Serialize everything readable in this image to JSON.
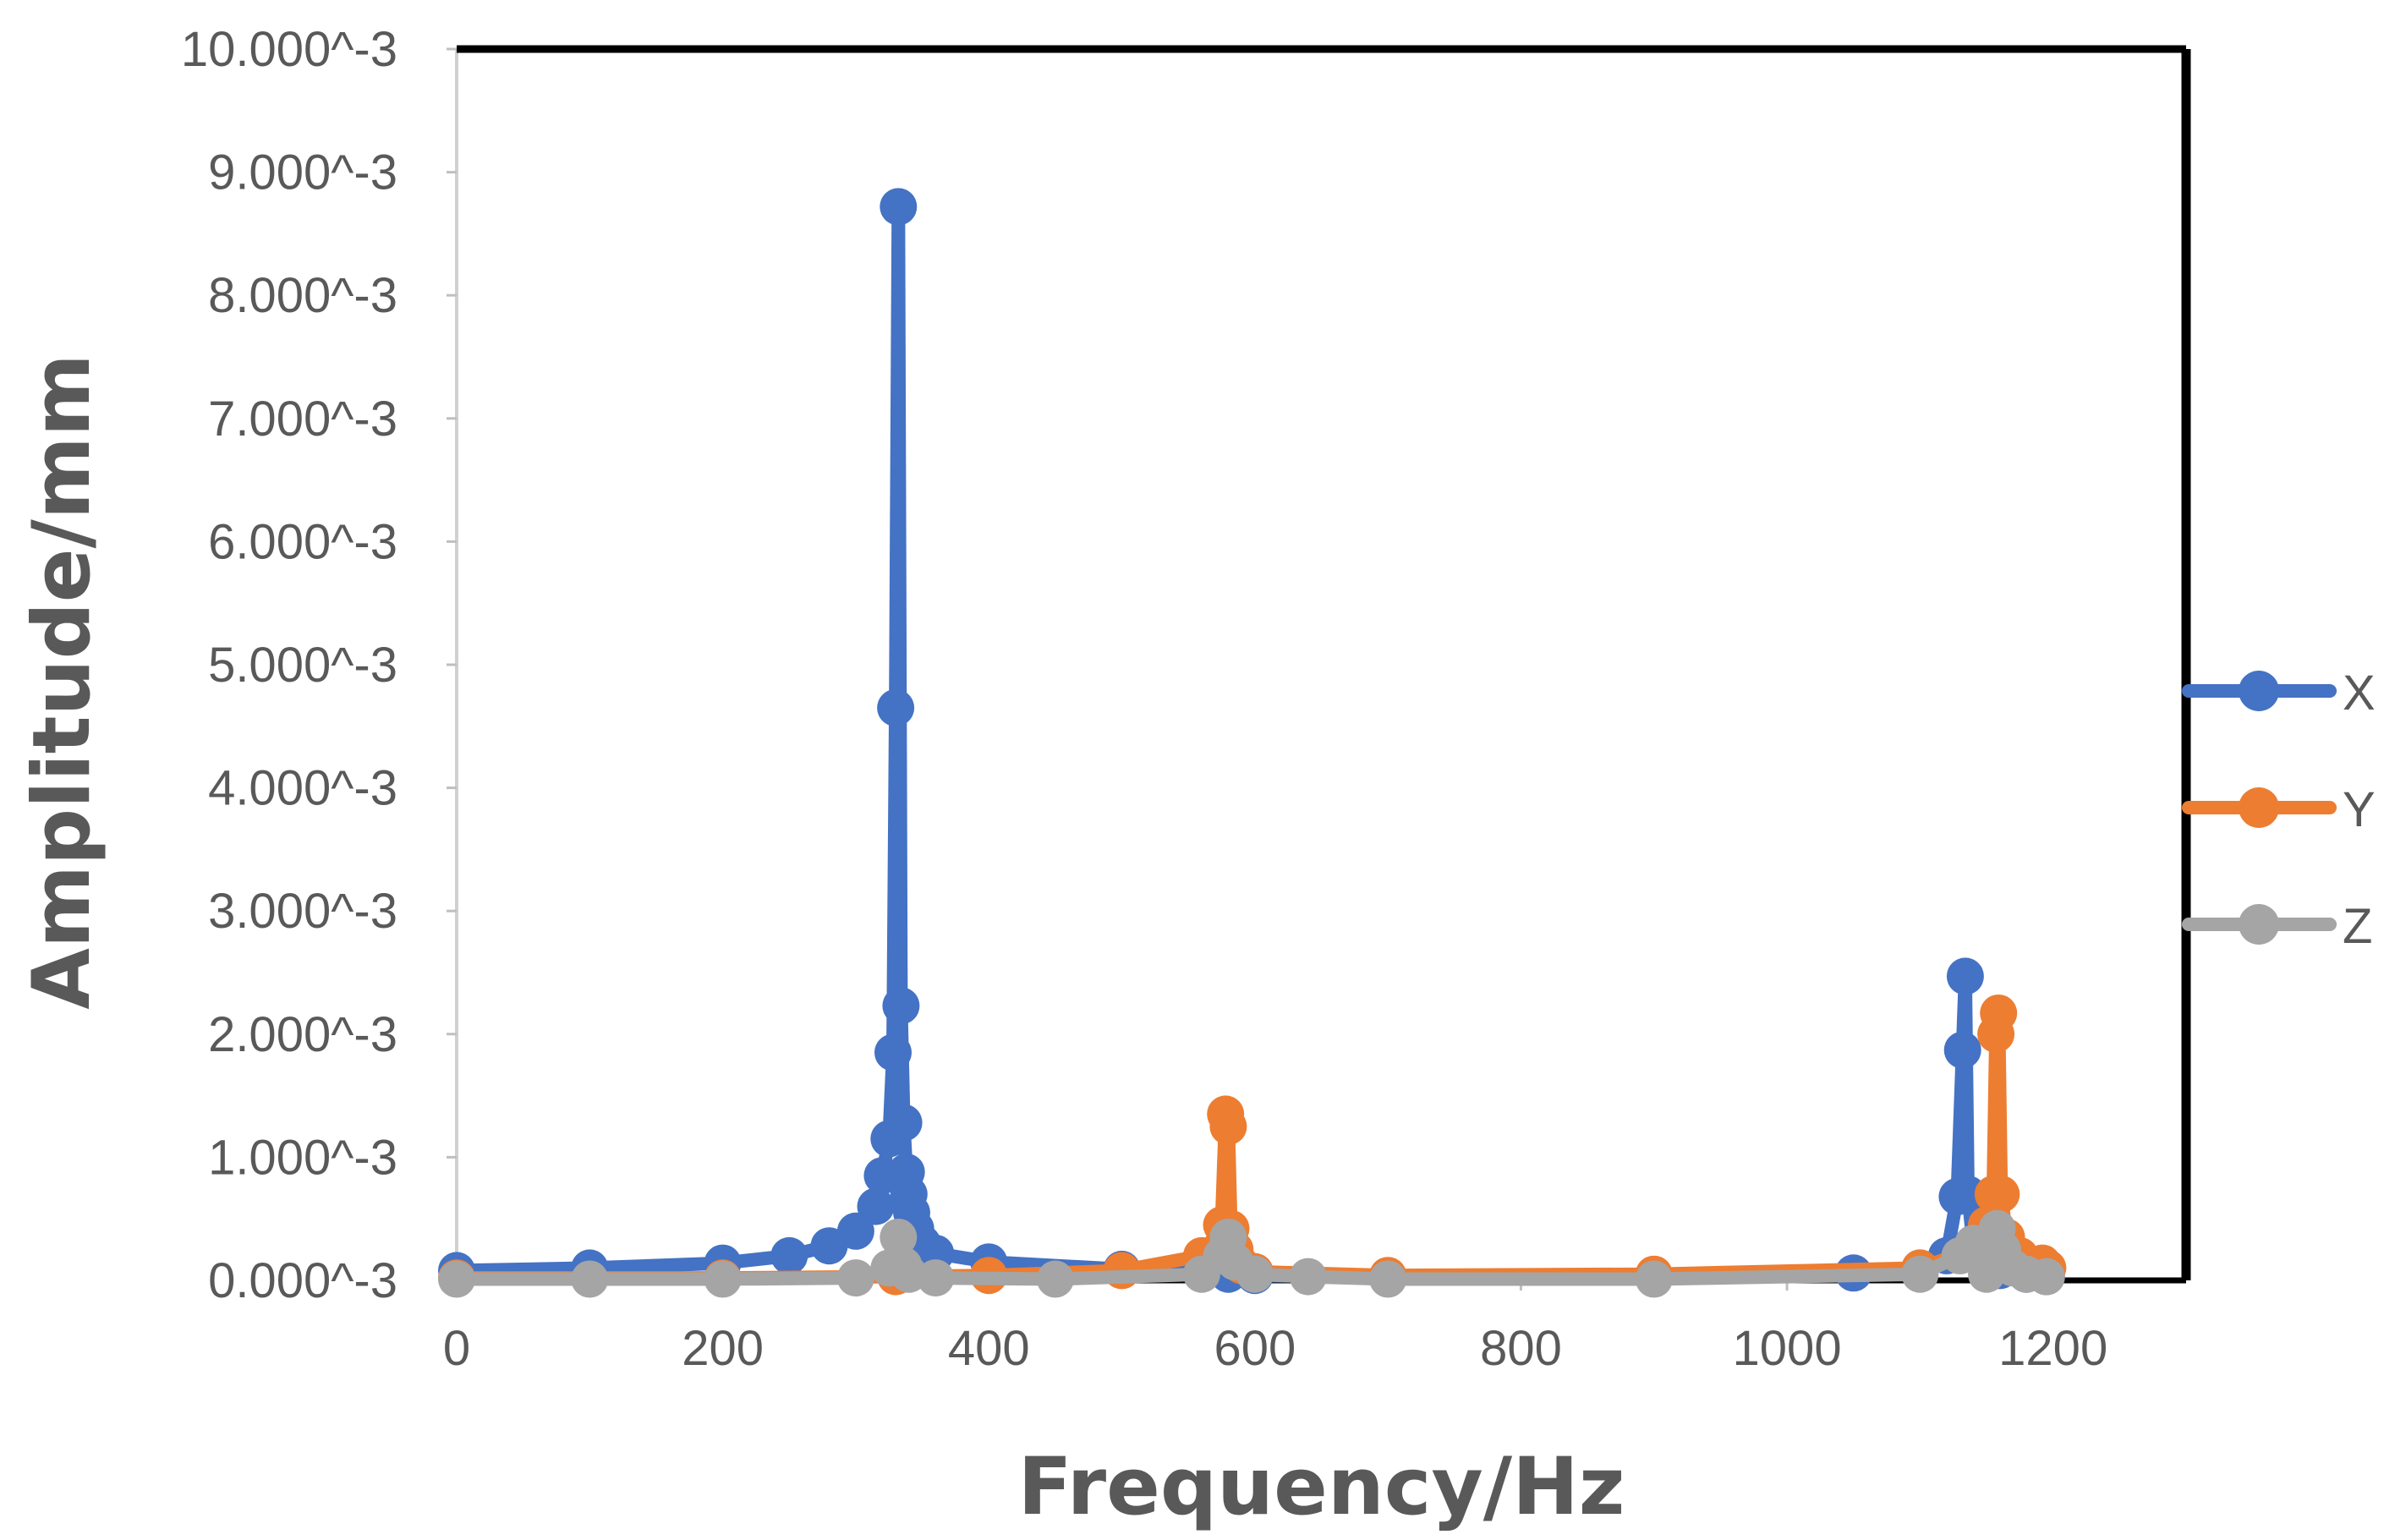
{
  "chart_data": {
    "type": "line",
    "xlabel": "Frequency/Hz",
    "ylabel": "Amplitude/mm",
    "xlim": [
      0,
      1300
    ],
    "ylim": [
      0,
      10
    ],
    "x_ticks": [
      0,
      200,
      400,
      600,
      800,
      1000,
      1200
    ],
    "y_ticks": [
      {
        "value": 0,
        "label": "0.000^-3"
      },
      {
        "value": 1,
        "label": "1.000^-3"
      },
      {
        "value": 2,
        "label": "2.000^-3"
      },
      {
        "value": 3,
        "label": "3.000^-3"
      },
      {
        "value": 4,
        "label": "4.000^-3"
      },
      {
        "value": 5,
        "label": "5.000^-3"
      },
      {
        "value": 6,
        "label": "6.000^-3"
      },
      {
        "value": 7,
        "label": "7.000^-3"
      },
      {
        "value": 8,
        "label": "8.000^-3"
      },
      {
        "value": 9,
        "label": "9.000^-3"
      },
      {
        "value": 10,
        "label": "10.000^-3"
      }
    ],
    "grid": false,
    "legend_position": "right",
    "series": [
      {
        "name": "X",
        "color": "#4472C4",
        "x": [
          0,
          100,
          200,
          250,
          280,
          300,
          315,
          320,
          325,
          328,
          330,
          332,
          334,
          336,
          338,
          340,
          342,
          345,
          350,
          360,
          400,
          500,
          580,
          600,
          700,
          900,
          1050,
          1100,
          1120,
          1128,
          1132,
          1134,
          1136,
          1140,
          1150,
          1160,
          1180,
          1195
        ],
        "y": [
          0.08,
          0.1,
          0.14,
          0.2,
          0.28,
          0.4,
          0.6,
          0.85,
          1.15,
          1.85,
          4.65,
          8.72,
          2.23,
          1.28,
          0.88,
          0.7,
          0.55,
          0.42,
          0.3,
          0.22,
          0.15,
          0.09,
          0.05,
          0.04,
          0.03,
          0.04,
          0.06,
          0.1,
          0.2,
          0.68,
          1.87,
          2.47,
          0.7,
          0.3,
          0.12,
          0.08,
          0.05,
          0.03
        ]
      },
      {
        "name": "Y",
        "color": "#ED7D31",
        "x": [
          0,
          200,
          330,
          400,
          500,
          560,
          575,
          578,
          580,
          582,
          585,
          590,
          600,
          700,
          900,
          1100,
          1140,
          1150,
          1155,
          1157,
          1159,
          1161,
          1165,
          1175,
          1185,
          1192,
          1196
        ],
        "y": [
          0.02,
          0.02,
          0.03,
          0.04,
          0.08,
          0.2,
          0.45,
          1.35,
          1.25,
          0.42,
          0.25,
          0.12,
          0.07,
          0.04,
          0.05,
          0.1,
          0.25,
          0.45,
          0.7,
          2.0,
          2.17,
          0.7,
          0.35,
          0.2,
          0.12,
          0.14,
          0.1
        ]
      },
      {
        "name": "Z",
        "color": "#A5A5A5",
        "x": [
          0,
          100,
          200,
          300,
          325,
          332,
          336,
          340,
          360,
          450,
          560,
          575,
          580,
          585,
          600,
          640,
          700,
          900,
          1100,
          1130,
          1140,
          1150,
          1155,
          1158,
          1162,
          1170,
          1180,
          1195
        ],
        "y": [
          0.01,
          0.01,
          0.01,
          0.02,
          0.1,
          0.35,
          0.12,
          0.05,
          0.02,
          0.01,
          0.05,
          0.2,
          0.35,
          0.15,
          0.05,
          0.03,
          0.01,
          0.01,
          0.05,
          0.2,
          0.3,
          0.05,
          0.3,
          0.42,
          0.25,
          0.1,
          0.05,
          0.03
        ]
      }
    ]
  }
}
